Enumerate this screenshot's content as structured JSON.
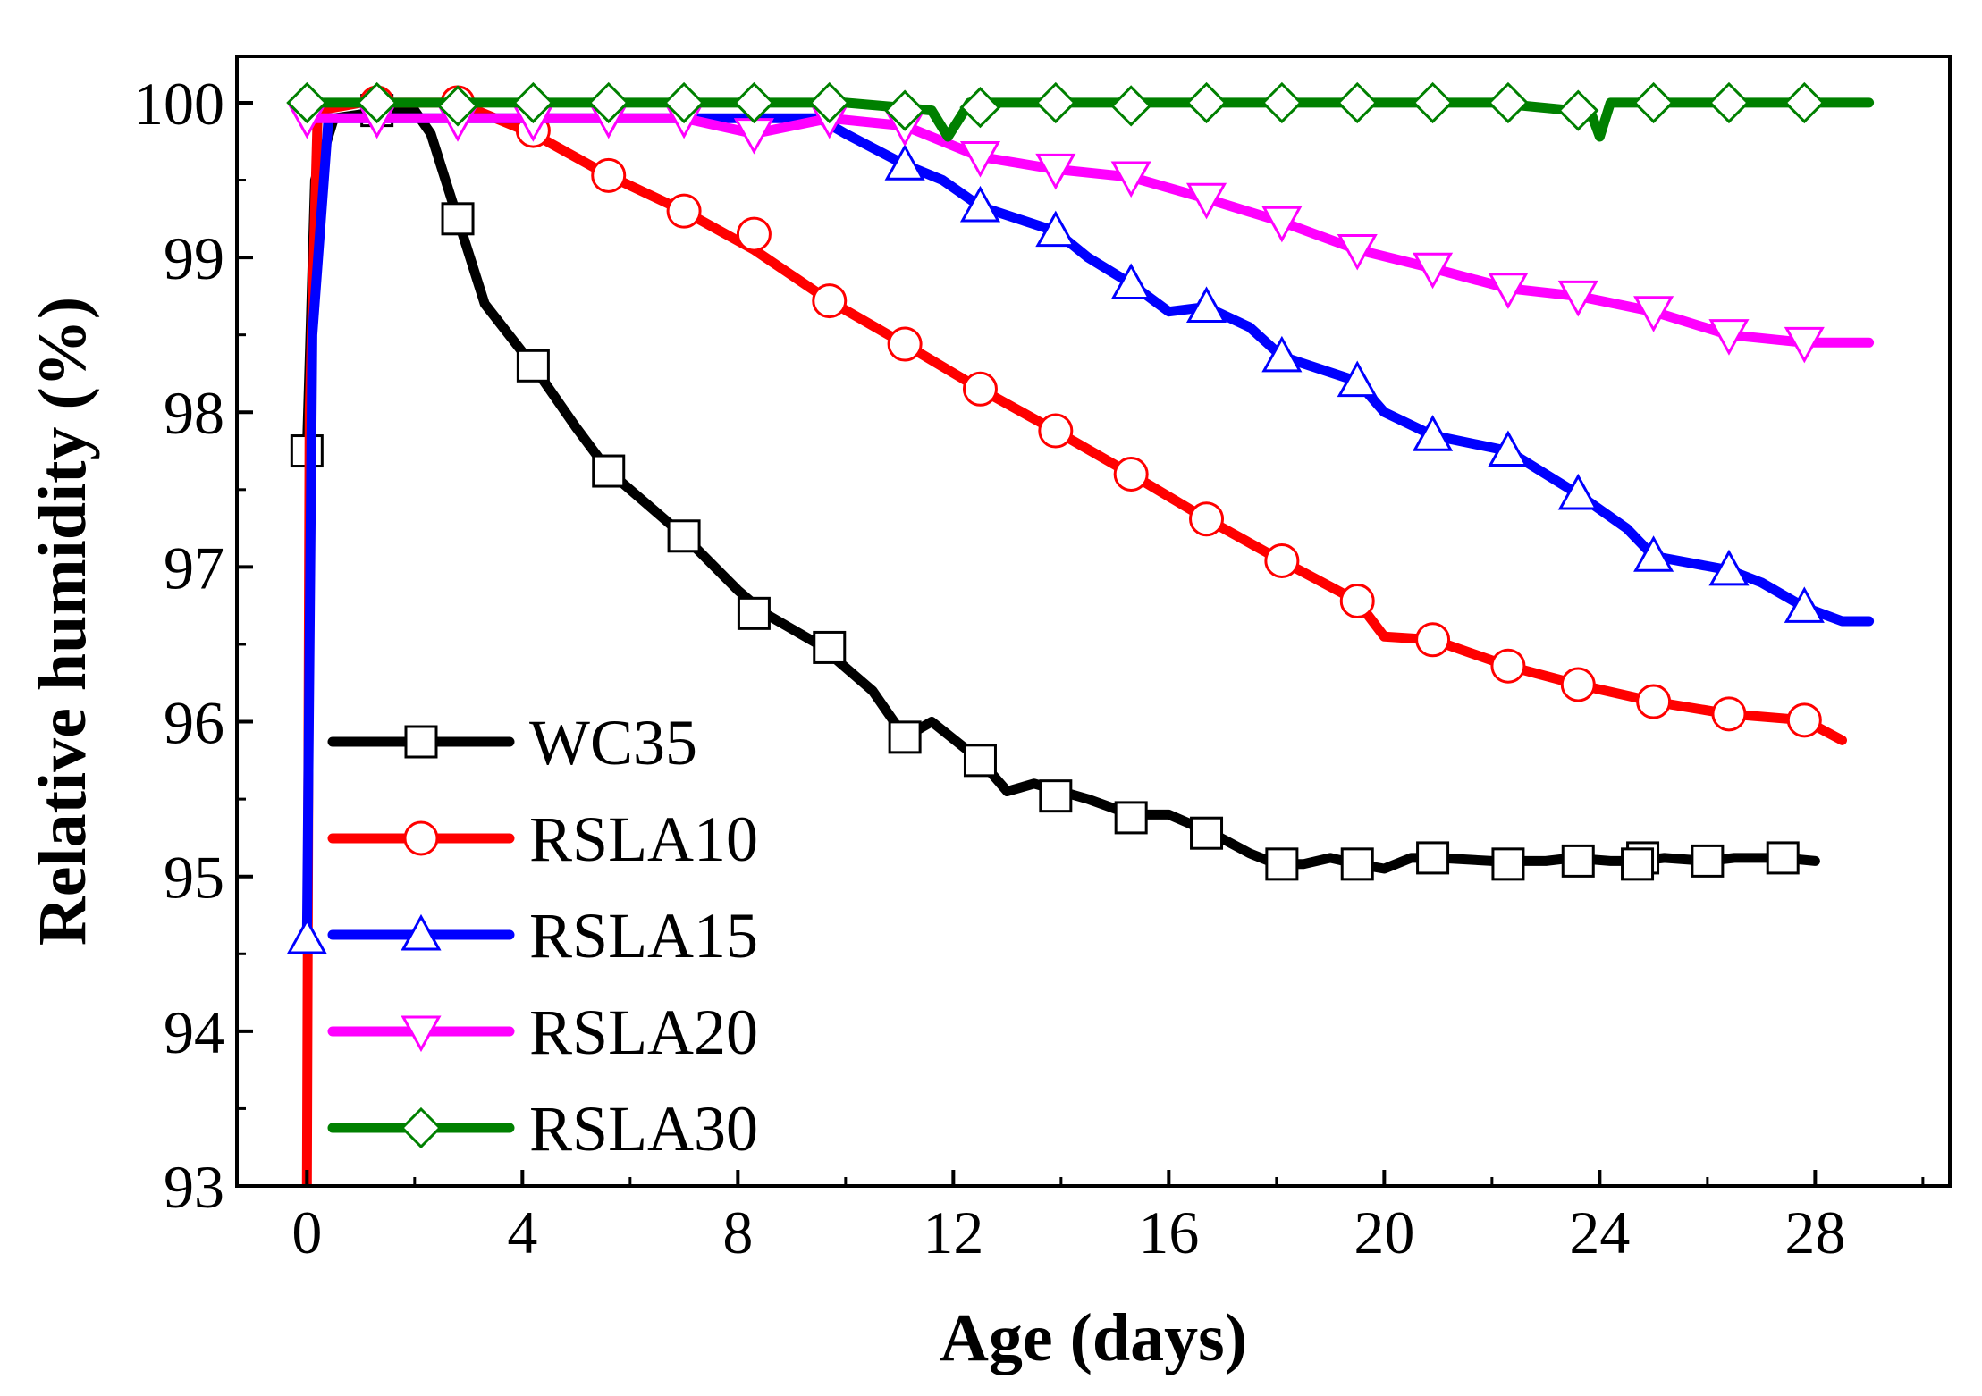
{
  "chart_data": {
    "type": "line",
    "xlabel": "Age (days)",
    "ylabel": "Relative humidity (%)",
    "xlim": [
      -1.3,
      30.5
    ],
    "ylim": [
      93,
      100.3
    ],
    "xticks": [
      0,
      4,
      8,
      12,
      16,
      20,
      24,
      28
    ],
    "yticks": [
      93,
      94,
      95,
      96,
      97,
      98,
      99,
      100
    ],
    "grid": false,
    "legend_position": "bottom-left",
    "series": [
      {
        "name": "WC35",
        "color": "#000000",
        "marker": "square",
        "x": [
          0,
          0.15,
          0.5,
          1.5,
          2.0,
          2.3,
          2.8,
          3.3,
          4.2,
          5.0,
          5.6,
          6.5,
          7.0,
          8.0,
          8.5,
          9.5,
          10.5,
          11.1,
          11.6,
          12.5,
          13.0,
          13.5,
          14.5,
          15.3,
          16.0,
          16.8,
          17.5,
          18.0,
          18.5,
          19.0,
          19.5,
          20.0,
          20.5,
          21.0,
          22.0,
          23.0,
          23.5,
          24.2,
          24.7,
          25.2,
          26.0,
          26.5,
          27.4,
          28.0
        ],
        "y": [
          97.75,
          99.5,
          99.9,
          99.95,
          99.95,
          99.8,
          99.25,
          98.7,
          98.3,
          97.9,
          97.62,
          97.35,
          97.2,
          96.85,
          96.7,
          96.5,
          96.2,
          95.9,
          96.0,
          95.75,
          95.55,
          95.6,
          95.5,
          95.4,
          95.4,
          95.28,
          95.15,
          95.08,
          95.08,
          95.12,
          95.08,
          95.05,
          95.12,
          95.12,
          95.1,
          95.1,
          95.12,
          95.1,
          95.1,
          95.12,
          95.1,
          95.12,
          95.12,
          95.1
        ],
        "marker_x": [
          0,
          1.3,
          2.8,
          4.2,
          5.6,
          7.0,
          8.3,
          9.7,
          11.1,
          12.5,
          13.9,
          15.3,
          16.7,
          18.1,
          19.5,
          20.9,
          22.3,
          23.6,
          24.8,
          24.7,
          26.0,
          27.4
        ],
        "marker_y": [
          97.75,
          99.95,
          99.25,
          98.3,
          97.62,
          97.2,
          96.7,
          96.48,
          95.9,
          95.75,
          95.52,
          95.38,
          95.28,
          95.08,
          95.08,
          95.12,
          95.08,
          95.1,
          95.12,
          95.08,
          95.1,
          95.12
        ]
      },
      {
        "name": "RSLA10",
        "color": "#ff0000",
        "marker": "circle",
        "x": [
          0,
          0.05,
          0.2,
          1.0,
          2.0,
          2.8,
          3.5,
          4.2,
          5.6,
          7.0,
          8.3,
          9.7,
          11.1,
          12.5,
          13.9,
          15.3,
          16.7,
          18.1,
          19.5,
          20.0,
          20.9,
          22.3,
          23.6,
          25.0,
          26.4,
          27.8,
          28.5
        ],
        "y": [
          93.0,
          98.0,
          99.95,
          100.0,
          100.0,
          100.0,
          99.9,
          99.8,
          99.53,
          99.3,
          99.05,
          98.72,
          98.44,
          98.15,
          97.88,
          97.6,
          97.31,
          97.04,
          96.78,
          96.55,
          96.53,
          96.36,
          96.24,
          96.13,
          96.05,
          96.01,
          95.88
        ],
        "marker_x": [
          1.3,
          2.8,
          4.2,
          5.6,
          7.0,
          8.3,
          9.7,
          11.1,
          12.5,
          13.9,
          15.3,
          16.7,
          18.1,
          19.5,
          20.9,
          22.3,
          23.6,
          25.0,
          26.4,
          27.8
        ],
        "marker_y": [
          100.0,
          100.0,
          99.82,
          99.53,
          99.3,
          99.15,
          98.72,
          98.44,
          98.15,
          97.88,
          97.6,
          97.31,
          97.04,
          96.78,
          96.53,
          96.36,
          96.24,
          96.13,
          96.05,
          96.01
        ]
      },
      {
        "name": "RSLA15",
        "color": "#0000ff",
        "marker": "triangle-up",
        "x": [
          0,
          0.1,
          0.4,
          1.5,
          4.0,
          7.0,
          9.5,
          10.0,
          11.1,
          11.8,
          12.5,
          13.9,
          14.5,
          15.3,
          16.0,
          16.7,
          17.5,
          18.1,
          19.5,
          20.0,
          20.9,
          22.3,
          23.6,
          24.5,
          25.0,
          26.4,
          27.0,
          27.8,
          28.5,
          29.0
        ],
        "y": [
          94.6,
          98.5,
          99.9,
          99.9,
          99.9,
          99.9,
          99.9,
          99.8,
          99.6,
          99.5,
          99.33,
          99.17,
          99.0,
          98.83,
          98.65,
          98.68,
          98.55,
          98.36,
          98.2,
          98.0,
          97.85,
          97.75,
          97.47,
          97.25,
          97.07,
          96.98,
          96.9,
          96.74,
          96.65,
          96.65
        ],
        "marker_x": [
          0,
          11.1,
          12.5,
          13.9,
          15.3,
          16.7,
          18.1,
          19.5,
          20.9,
          22.3,
          23.6,
          25.0,
          26.4,
          27.8
        ],
        "marker_y": [
          94.6,
          99.6,
          99.33,
          99.17,
          98.83,
          98.68,
          98.36,
          98.2,
          97.85,
          97.75,
          97.47,
          97.07,
          96.98,
          96.74
        ]
      },
      {
        "name": "RSLA20",
        "color": "#ff00ff",
        "marker": "triangle-down",
        "x": [
          0,
          0.3,
          1.5,
          3.0,
          5.0,
          7.0,
          8.3,
          9.7,
          11.1,
          12.5,
          13.9,
          15.3,
          16.7,
          18.1,
          19.5,
          20.9,
          22.3,
          23.6,
          25.0,
          26.4,
          27.8,
          29.0
        ],
        "y": [
          99.9,
          99.9,
          99.9,
          99.9,
          99.9,
          99.9,
          99.8,
          99.9,
          99.85,
          99.65,
          99.57,
          99.52,
          99.38,
          99.23,
          99.05,
          98.93,
          98.8,
          98.75,
          98.65,
          98.5,
          98.45,
          98.45
        ],
        "marker_x": [
          0,
          1.3,
          2.8,
          4.2,
          5.6,
          7.0,
          8.3,
          9.7,
          11.1,
          12.5,
          13.9,
          15.3,
          16.7,
          18.1,
          19.5,
          20.9,
          22.3,
          23.6,
          25.0,
          26.4,
          27.8
        ],
        "marker_y": [
          99.9,
          99.9,
          99.88,
          99.88,
          99.9,
          99.9,
          99.8,
          99.9,
          99.85,
          99.65,
          99.57,
          99.52,
          99.38,
          99.23,
          99.05,
          98.93,
          98.8,
          98.75,
          98.65,
          98.5,
          98.45
        ]
      },
      {
        "name": "RSLA30",
        "color": "#008000",
        "marker": "diamond",
        "x": [
          0,
          1.0,
          5.0,
          10.0,
          11.0,
          11.6,
          11.9,
          12.3,
          14.0,
          18.0,
          22.0,
          23.5,
          23.8,
          24.0,
          24.2,
          26.0,
          29.0
        ],
        "y": [
          100.0,
          100.0,
          100.0,
          100.0,
          99.97,
          99.95,
          99.78,
          100.0,
          100.0,
          100.0,
          100.0,
          99.95,
          99.97,
          99.78,
          100.0,
          100.0,
          100.0
        ],
        "marker_x": [
          0,
          1.3,
          2.8,
          4.2,
          5.6,
          7.0,
          8.3,
          9.7,
          11.1,
          12.5,
          13.9,
          15.3,
          16.7,
          18.1,
          19.5,
          20.9,
          22.3,
          23.6,
          25.0,
          26.4,
          27.8
        ],
        "marker_y": [
          100.0,
          100.0,
          99.98,
          100.0,
          100.0,
          100.0,
          100.0,
          100.0,
          99.95,
          99.97,
          100.0,
          99.98,
          100.0,
          100.0,
          100.0,
          100.0,
          100.0,
          99.95,
          100.0,
          100.0,
          100.0
        ]
      }
    ]
  }
}
